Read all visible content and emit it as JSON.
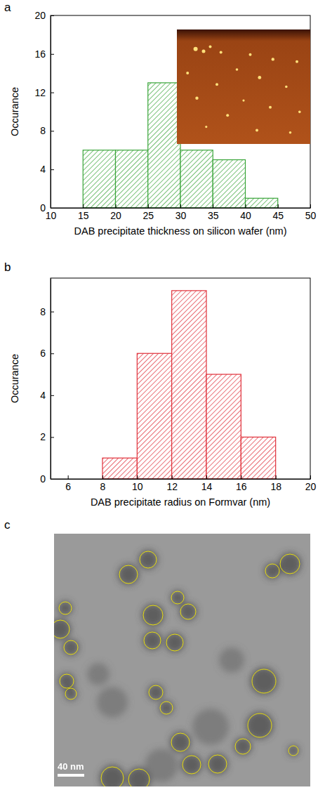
{
  "panel_labels": [
    "a",
    "b",
    "c"
  ],
  "chart_data": [
    {
      "type": "histogram",
      "bins": [
        15,
        20,
        25,
        30,
        35,
        40,
        45
      ],
      "values": [
        6,
        6,
        13,
        6,
        5,
        1
      ],
      "color": "#3aa53a",
      "xlabel": "DAB precipitate thickness on silicon wafer (nm)",
      "ylabel": "Occurance",
      "xlim": [
        10,
        50
      ],
      "xticks": [
        10,
        15,
        20,
        25,
        30,
        35,
        40,
        45,
        50
      ],
      "ylim": [
        0,
        20
      ],
      "yticks": [
        0,
        4,
        8,
        12,
        16,
        20
      ]
    },
    {
      "type": "histogram",
      "bins": [
        8,
        10,
        12,
        14,
        16,
        18
      ],
      "values": [
        1,
        6,
        9,
        5,
        2
      ],
      "color": "#e0303a",
      "xlabel": "DAB precipitate radius on Formvar (nm)",
      "ylabel": "Occurance",
      "xlim": [
        5,
        20
      ],
      "xticks": [
        6,
        8,
        10,
        12,
        14,
        16,
        18,
        20
      ],
      "ylim": [
        0,
        9.6
      ],
      "yticks": [
        0,
        2,
        4,
        6,
        8
      ]
    }
  ],
  "micrograph": {
    "scale_bar_label": "40 nm"
  }
}
